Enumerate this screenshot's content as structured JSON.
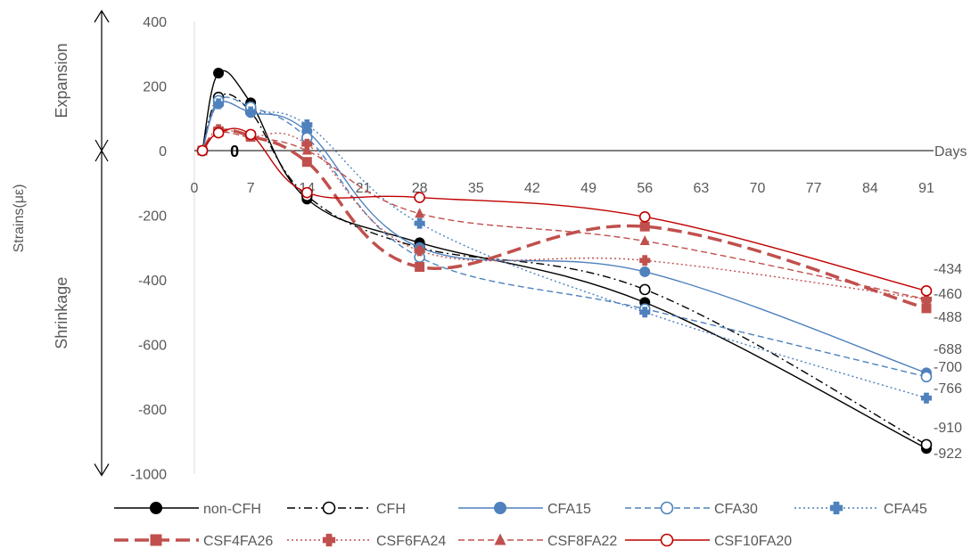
{
  "chart_data": {
    "type": "line",
    "title": "",
    "xlabel": "Days",
    "ylabel": "Strains(με)",
    "expansion_label": "Expansion",
    "shrinkage_label": "Shrinkage",
    "zero_marker": "0",
    "xlim": [
      0,
      91
    ],
    "ylim": [
      -1000,
      400
    ],
    "x_ticks": [
      0,
      7,
      14,
      21,
      28,
      35,
      42,
      49,
      56,
      63,
      70,
      77,
      84,
      91
    ],
    "y_ticks": [
      400,
      200,
      0,
      -200,
      -400,
      -600,
      -800,
      -1000
    ],
    "grid": false,
    "legend_position": "bottom",
    "end_labels": [
      "-434",
      "-460",
      "-488",
      "-688",
      "-700",
      "-766",
      "-910",
      "-922"
    ],
    "series": [
      {
        "name": "non-CFH",
        "color": "#000000",
        "dash": "solid",
        "marker": "filled-circle",
        "x": [
          1,
          3,
          7,
          14,
          28,
          56,
          91
        ],
        "y": [
          0,
          240,
          148,
          -150,
          -285,
          -470,
          -922
        ]
      },
      {
        "name": "CFH",
        "color": "#000000",
        "dash": "dashdot",
        "marker": "open-circle",
        "x": [
          1,
          3,
          7,
          14,
          28,
          56,
          91
        ],
        "y": [
          0,
          165,
          120,
          -140,
          -300,
          -430,
          -910
        ]
      },
      {
        "name": "CFA15",
        "color": "#4f81bd",
        "dash": "solid",
        "marker": "filled-circle",
        "x": [
          1,
          3,
          7,
          14,
          28,
          56,
          91
        ],
        "y": [
          0,
          145,
          118,
          60,
          -300,
          -375,
          -688
        ]
      },
      {
        "name": "CFA30",
        "color": "#4f81bd",
        "dash": "dashed",
        "marker": "open-circle",
        "x": [
          1,
          3,
          7,
          14,
          28,
          56,
          91
        ],
        "y": [
          0,
          155,
          135,
          40,
          -330,
          -490,
          -700
        ]
      },
      {
        "name": "CFA45",
        "color": "#4f81bd",
        "dash": "dotted",
        "marker": "plus",
        "x": [
          1,
          3,
          7,
          14,
          28,
          56,
          91
        ],
        "y": [
          0,
          145,
          120,
          80,
          -225,
          -500,
          -766
        ]
      },
      {
        "name": "CSF4FA26",
        "color": "#c0504d",
        "dash": "longdash",
        "marker": "square",
        "x": [
          1,
          3,
          7,
          14,
          28,
          56,
          91
        ],
        "y": [
          0,
          60,
          45,
          -35,
          -360,
          -235,
          -488
        ]
      },
      {
        "name": "CSF6FA24",
        "color": "#c0504d",
        "dash": "dotted",
        "marker": "plus",
        "x": [
          1,
          3,
          7,
          14,
          28,
          56,
          91
        ],
        "y": [
          0,
          65,
          45,
          20,
          -310,
          -340,
          -460
        ]
      },
      {
        "name": "CSF8FA22",
        "color": "#c0504d",
        "dash": "dashed",
        "marker": "triangle",
        "x": [
          1,
          3,
          7,
          14,
          28,
          56,
          91
        ],
        "y": [
          0,
          55,
          40,
          0,
          -195,
          -280,
          -460
        ]
      },
      {
        "name": "CSF10FA20",
        "color": "#c00000",
        "dash": "solid",
        "marker": "open-circle",
        "x": [
          1,
          3,
          7,
          14,
          28,
          56,
          91
        ],
        "y": [
          0,
          55,
          50,
          -130,
          -145,
          -205,
          -434
        ]
      }
    ]
  }
}
